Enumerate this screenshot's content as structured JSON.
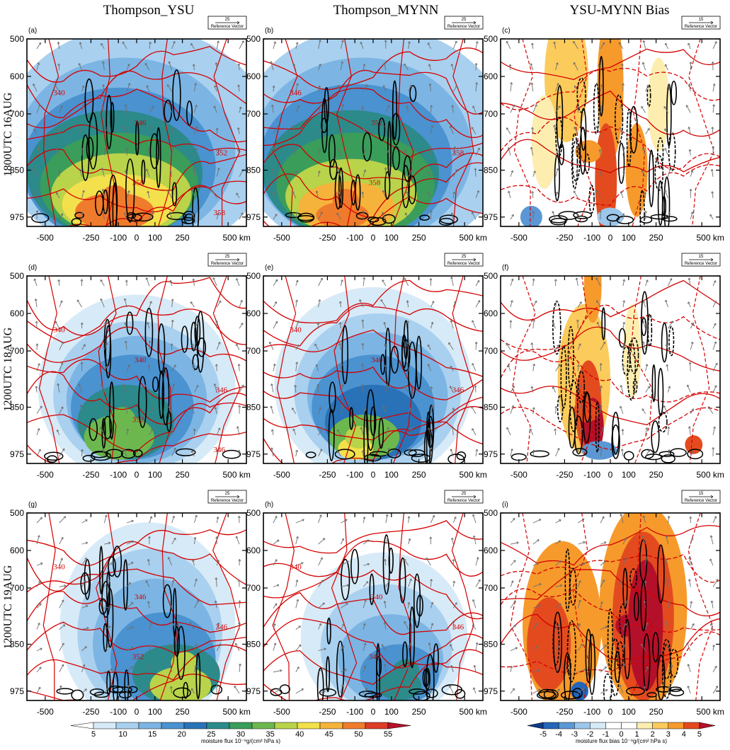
{
  "column_titles": [
    "Thompson_YSU",
    "Thompson_MYNN",
    "YSU-MYNN Bias"
  ],
  "row_titles": [
    "1800UTC 16AUG",
    "1200UTC 18AUG",
    "1200UTC 19AUG"
  ],
  "colors": {
    "contour_red": "#d40000",
    "vector_gray": "#6e6e6e",
    "flux_palette": [
      "#ffffff",
      "#d7eaf7",
      "#a9d0ef",
      "#7cb5e3",
      "#4a92d0",
      "#2a72b8",
      "#2c8a8a",
      "#3a9d5a",
      "#6cb84f",
      "#b9d34a",
      "#f2e04c",
      "#f6b33b",
      "#ef7b2c",
      "#dd3d26",
      "#b8102a"
    ],
    "bias_palette": [
      "#0b3c8a",
      "#2566b8",
      "#5b97d4",
      "#9cc6ea",
      "#d6eaf7",
      "#ffffff",
      "#ffffff",
      "#fdeeb0",
      "#fbcb5c",
      "#f69a2c",
      "#e34b1f",
      "#b5102a"
    ]
  },
  "chart_data": [
    {
      "type": "heatmap",
      "panel": "(a)",
      "row": "1800UTC 16AUG",
      "column": "Thompson_YSU",
      "variable": "moisture flux",
      "y_unit": "hPa",
      "x_unit": "km",
      "x_ticks": [
        "-500",
        "-250",
        "-100",
        "0",
        "100",
        "250",
        "500 km"
      ],
      "x_tick_values": [
        -500,
        -250,
        -100,
        0,
        100,
        250,
        500
      ],
      "xlim": [
        -600,
        600
      ],
      "y_ticks": [
        "500",
        "600",
        "700",
        "850",
        "975"
      ],
      "y_tick_values": [
        500,
        600,
        700,
        850,
        975
      ],
      "ylim": [
        500,
        1000
      ],
      "reference_vector": {
        "value": "25",
        "label": "Reference Vector"
      },
      "contour_labels": [
        "340",
        "346",
        "352",
        "358",
        "358"
      ],
      "field_peak": {
        "x": -120,
        "y": 920,
        "value": 47
      }
    },
    {
      "type": "heatmap",
      "panel": "(b)",
      "row": "1800UTC 16AUG",
      "column": "Thompson_MYNN",
      "variable": "moisture flux",
      "y_unit": "hPa",
      "x_unit": "km",
      "x_ticks": [
        "-500",
        "-250",
        "-100",
        "0",
        "100",
        "250",
        "500 km"
      ],
      "x_tick_values": [
        -500,
        -250,
        -100,
        0,
        100,
        250,
        500
      ],
      "xlim": [
        -600,
        600
      ],
      "y_ticks": [
        "500",
        "600",
        "700",
        "850",
        "975"
      ],
      "y_tick_values": [
        500,
        600,
        700,
        850,
        975
      ],
      "ylim": [
        500,
        1000
      ],
      "reference_vector": {
        "value": "25",
        "label": "Reference Vector"
      },
      "contour_labels": [
        "346",
        "352",
        "358",
        "358"
      ],
      "field_peak": {
        "x": -150,
        "y": 930,
        "value": 46
      }
    },
    {
      "type": "heatmap",
      "panel": "(c)",
      "row": "1800UTC 16AUG",
      "column": "YSU-MYNN Bias",
      "variable": "moisture flux bias",
      "y_unit": "hPa",
      "x_unit": "km",
      "x_ticks": [
        "-500",
        "-250",
        "-100",
        "0",
        "100",
        "250",
        "500 km"
      ],
      "x_tick_values": [
        -500,
        -250,
        -100,
        0,
        100,
        250,
        500
      ],
      "xlim": [
        -600,
        600
      ],
      "y_ticks": [
        "500",
        "600",
        "700",
        "850",
        "975"
      ],
      "y_tick_values": [
        500,
        600,
        700,
        850,
        975
      ],
      "ylim": [
        500,
        1000
      ],
      "reference_vector": {
        "value": "15",
        "label": "Reference Vector"
      },
      "contour_labels": [],
      "field_peak": {
        "x": -120,
        "y": 800,
        "value": 3
      }
    },
    {
      "type": "heatmap",
      "panel": "(d)",
      "row": "1200UTC 18AUG",
      "column": "Thompson_YSU",
      "variable": "moisture flux",
      "y_unit": "hPa",
      "x_unit": "km",
      "x_ticks": [
        "-500",
        "-250",
        "-100",
        "0",
        "100",
        "250",
        "500 km"
      ],
      "x_tick_values": [
        -500,
        -250,
        -100,
        0,
        100,
        250,
        500
      ],
      "xlim": [
        -600,
        600
      ],
      "y_ticks": [
        "500",
        "600",
        "700",
        "850",
        "975"
      ],
      "y_tick_values": [
        500,
        600,
        700,
        850,
        975
      ],
      "ylim": [
        500,
        1000
      ],
      "reference_vector": {
        "value": "25",
        "label": "Reference Vector"
      },
      "contour_labels": [
        "340",
        "340",
        "346",
        "352",
        "346"
      ],
      "field_peak": {
        "x": -80,
        "y": 880,
        "value": 32
      }
    },
    {
      "type": "heatmap",
      "panel": "(e)",
      "row": "1200UTC 18AUG",
      "column": "Thompson_MYNN",
      "variable": "moisture flux",
      "y_unit": "hPa",
      "x_unit": "km",
      "x_ticks": [
        "-500",
        "-250",
        "-100",
        "0",
        "100",
        "250",
        "500 km"
      ],
      "x_tick_values": [
        -500,
        -250,
        -100,
        0,
        100,
        250,
        500
      ],
      "xlim": [
        -600,
        600
      ],
      "y_ticks": [
        "500",
        "600",
        "700",
        "850",
        "975"
      ],
      "y_tick_values": [
        500,
        600,
        700,
        850,
        975
      ],
      "ylim": [
        500,
        1000
      ],
      "reference_vector": {
        "value": "25",
        "label": "Reference Vector"
      },
      "contour_labels": [
        "340",
        "340",
        "346"
      ],
      "field_peak": {
        "x": -80,
        "y": 930,
        "value": 36
      }
    },
    {
      "type": "heatmap",
      "panel": "(f)",
      "row": "1200UTC 18AUG",
      "column": "YSU-MYNN Bias",
      "variable": "moisture flux bias",
      "y_unit": "hPa",
      "x_unit": "km",
      "x_ticks": [
        "-500",
        "-250",
        "-100",
        "0",
        "100",
        "250",
        "500 km"
      ],
      "x_tick_values": [
        -500,
        -250,
        -100,
        0,
        100,
        250,
        500
      ],
      "xlim": [
        -600,
        600
      ],
      "y_ticks": [
        "500",
        "600",
        "700",
        "850",
        "975"
      ],
      "y_tick_values": [
        500,
        600,
        700,
        850,
        975
      ],
      "ylim": [
        500,
        1000
      ],
      "reference_vector": {
        "value": "15",
        "label": "Reference Vector"
      },
      "contour_labels": [],
      "field_peak": {
        "x": -130,
        "y": 860,
        "value": 4
      }
    },
    {
      "type": "heatmap",
      "panel": "(g)",
      "row": "1200UTC 19AUG",
      "column": "Thompson_YSU",
      "variable": "moisture flux",
      "y_unit": "hPa",
      "x_unit": "km",
      "x_ticks": [
        "-500",
        "-250",
        "-100",
        "0",
        "100",
        "250",
        "500 km"
      ],
      "x_tick_values": [
        -500,
        -250,
        -100,
        0,
        100,
        250,
        500
      ],
      "xlim": [
        -600,
        600
      ],
      "y_ticks": [
        "500",
        "600",
        "700",
        "850",
        "975"
      ],
      "y_tick_values": [
        500,
        600,
        700,
        850,
        975
      ],
      "ylim": [
        500,
        1000
      ],
      "reference_vector": {
        "value": "25",
        "label": "Reference Vector"
      },
      "contour_labels": [
        "340",
        "346",
        "346",
        "352"
      ],
      "field_peak": {
        "x": 260,
        "y": 900,
        "value": 35
      }
    },
    {
      "type": "heatmap",
      "panel": "(h)",
      "row": "1200UTC 19AUG",
      "column": "Thompson_MYNN",
      "variable": "moisture flux",
      "y_unit": "hPa",
      "x_unit": "km",
      "x_ticks": [
        "-500",
        "-250",
        "-100",
        "0",
        "100",
        "250",
        "500 km"
      ],
      "x_tick_values": [
        -500,
        -250,
        -100,
        0,
        100,
        250,
        500
      ],
      "xlim": [
        -600,
        600
      ],
      "y_ticks": [
        "500",
        "600",
        "700",
        "850",
        "975"
      ],
      "y_tick_values": [
        500,
        600,
        700,
        850,
        975
      ],
      "ylim": [
        500,
        1000
      ],
      "reference_vector": {
        "value": "25",
        "label": "Reference Vector"
      },
      "contour_labels": [
        "340",
        "340",
        "346",
        "346"
      ],
      "field_peak": {
        "x": 180,
        "y": 920,
        "value": 22
      }
    },
    {
      "type": "heatmap",
      "panel": "(i)",
      "row": "1200UTC 19AUG",
      "column": "YSU-MYNN Bias",
      "variable": "moisture flux bias",
      "y_unit": "hPa",
      "x_unit": "km",
      "x_ticks": [
        "-500",
        "-250",
        "-100",
        "0",
        "100",
        "250",
        "500 km"
      ],
      "x_tick_values": [
        -500,
        -250,
        -100,
        0,
        100,
        250,
        500
      ],
      "xlim": [
        -600,
        600
      ],
      "y_ticks": [
        "500",
        "600",
        "700",
        "850",
        "975"
      ],
      "y_tick_values": [
        500,
        600,
        700,
        850,
        975
      ],
      "ylim": [
        500,
        1000
      ],
      "reference_vector": {
        "value": "15",
        "label": "Reference Vector"
      },
      "contour_labels": [],
      "field_peak": {
        "x": 100,
        "y": 800,
        "value": 5
      }
    }
  ],
  "colorbars": [
    {
      "title": "moisture flux 10⁻⁹g/(cm² hPa s)",
      "labels": [
        "5",
        "10",
        "15",
        "20",
        "25",
        "30",
        "35",
        "40",
        "45",
        "50",
        "55"
      ]
    },
    {
      "title": "moisture flux bias 10⁻⁹g/(cm² hPa s)",
      "labels": [
        "-5",
        "-4",
        "-3",
        "-2",
        "-1",
        "0",
        "1",
        "2",
        "3",
        "4",
        "5"
      ]
    }
  ]
}
